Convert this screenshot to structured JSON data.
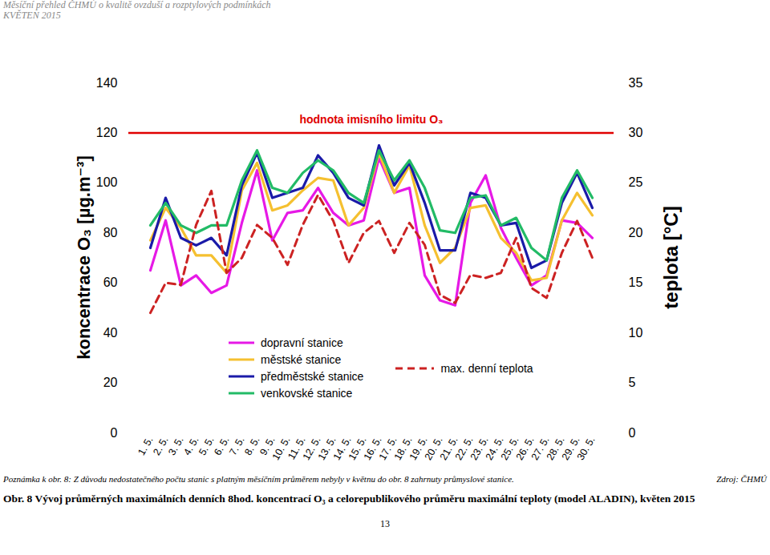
{
  "header": {
    "title": "Měsíční přehled ČHMÚ o kvalitě ovzduší a rozptylových podmínkách",
    "subtitle": "KVĚTEN 2015"
  },
  "chart_data": {
    "type": "line",
    "categories": [
      "1. 5.",
      "2. 5.",
      "3. 5.",
      "4. 5.",
      "5. 5.",
      "6. 5.",
      "7. 5.",
      "8. 5.",
      "9. 5.",
      "10. 5.",
      "11. 5.",
      "12. 5.",
      "13. 5.",
      "14. 5.",
      "15. 5.",
      "16. 5.",
      "17. 5.",
      "18. 5.",
      "19. 5.",
      "20. 5.",
      "21. 5.",
      "22. 5.",
      "23. 5.",
      "24. 5.",
      "25. 5.",
      "26. 5.",
      "27. 5.",
      "28. 5.",
      "29. 5.",
      "30. 5."
    ],
    "series": [
      {
        "name": "dopravní stanice",
        "color": "#e619e6",
        "line_style": "solid",
        "values": [
          65,
          85,
          59,
          63,
          56,
          59,
          84,
          105,
          77,
          88,
          89,
          98,
          88,
          83,
          85,
          110,
          96,
          98,
          63,
          53,
          51,
          92,
          103,
          82,
          70,
          59,
          63,
          85,
          84,
          78
        ]
      },
      {
        "name": "městské stanice",
        "color": "#f5c030",
        "line_style": "solid",
        "values": [
          77,
          90,
          82,
          71,
          71,
          64,
          97,
          108,
          89,
          91,
          97,
          102,
          101,
          83,
          90,
          112,
          96,
          107,
          83,
          68,
          74,
          90,
          91,
          78,
          72,
          61,
          62,
          85,
          96,
          87
        ]
      },
      {
        "name": "předměstské stanice",
        "color": "#1a1aa8",
        "line_style": "solid",
        "values": [
          74,
          94,
          78,
          75,
          78,
          71,
          99,
          112,
          94,
          96,
          98,
          111,
          104,
          94,
          91,
          115,
          99,
          108,
          92,
          73,
          73,
          96,
          94,
          83,
          84,
          66,
          69,
          92,
          104,
          90
        ]
      },
      {
        "name": "venkovské stanice",
        "color": "#22bb66",
        "line_style": "solid",
        "values": [
          83,
          92,
          83,
          80,
          83,
          83,
          101,
          113,
          98,
          96,
          104,
          109,
          105,
          96,
          92,
          113,
          101,
          109,
          98,
          81,
          80,
          94,
          95,
          83,
          86,
          74,
          69,
          94,
          105,
          94
        ]
      },
      {
        "name": "max. denní teplota",
        "color": "#cc2222",
        "line_style": "dashed",
        "axis": "y2",
        "values": [
          12,
          15,
          14.8,
          20.8,
          24.2,
          16,
          17.5,
          20.8,
          19.5,
          16.8,
          20.8,
          23.8,
          21.2,
          17,
          20,
          21.2,
          18,
          21,
          18.8,
          13.8,
          13,
          15.8,
          15.5,
          16,
          19.5,
          14.5,
          13.5,
          18,
          21.2,
          17.5
        ]
      }
    ],
    "ylabel": "koncentrace O₃ [µg.m⁻³]",
    "y2label": "teplota [°C]",
    "ylim": [
      0,
      140
    ],
    "yticks": [
      0,
      20,
      40,
      60,
      80,
      100,
      120,
      140
    ],
    "y2lim": [
      0,
      35
    ],
    "y2ticks": [
      0,
      5,
      10,
      15,
      20,
      25,
      30,
      35
    ],
    "annotations": [
      {
        "text": "hodnota imisního limitu O₃",
        "y": 120,
        "color": "#e00000"
      }
    ],
    "legend": "lower left",
    "grid": false
  },
  "note": "Poznámka k obr. 8: Z důvodu nedostatečného počtu stanic s platným měsíčním průměrem nebyly v květnu do obr. 8 zahrnuty průmyslové stanice.",
  "source": "Zdroj: ČHMÚ",
  "caption": "Obr. 8 Vývoj průměrných maximálních denních 8hod. koncentrací O₃ a celorepublikového průměru maximální teploty (model ALADIN), květen 2015",
  "page": "13"
}
